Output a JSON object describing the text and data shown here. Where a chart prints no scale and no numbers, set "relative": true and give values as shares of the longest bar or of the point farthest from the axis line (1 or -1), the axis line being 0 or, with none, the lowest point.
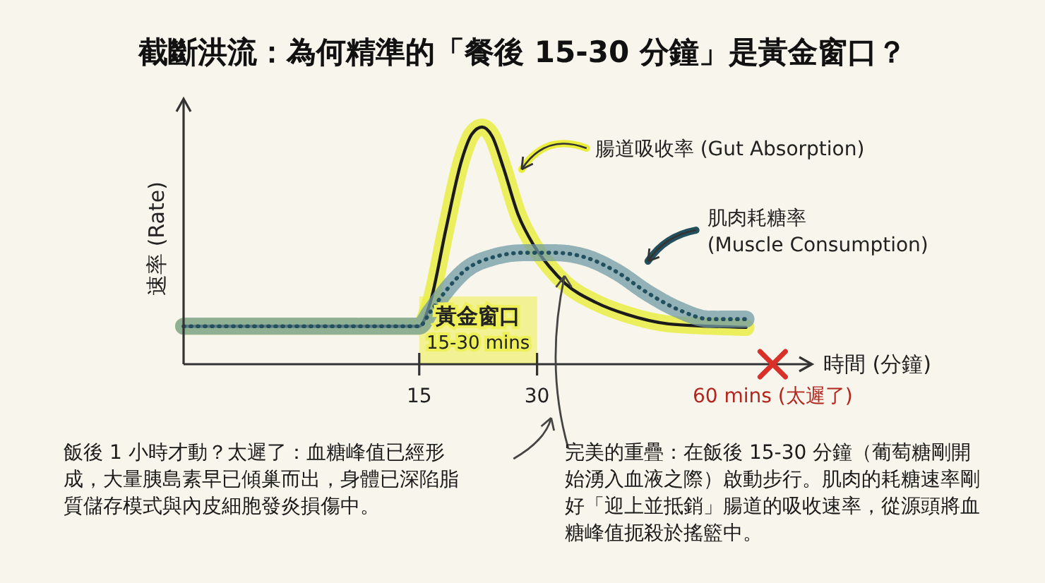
{
  "chart_data": {
    "type": "line",
    "title": "截斷洪流：為何精準的「餐後 15-30 分鐘」是黃金窗口？",
    "xlabel": "時間 (分鐘)",
    "ylabel": "速率 (Rate)",
    "relative": true,
    "legend": "top right",
    "marker": "none",
    "xlim": [
      -15,
      65
    ],
    "xticks": [
      15,
      30,
      {
        "value": 60,
        "label": "60 mins (太遲了)"
      }
    ],
    "series": [
      {
        "name": "腸道吸收率 (Gut Absorption)",
        "color": "#e9ee3a",
        "line_style": "solid",
        "x": [
          -15,
          15,
          16.4,
          18.4,
          20.4,
          21.7,
          23,
          24.3,
          25.7,
          27.6,
          29.6,
          31.6,
          33.6,
          37.5,
          41.4,
          46.7,
          52,
          56.6
        ],
        "values": [
          0.16,
          0.16,
          0.26,
          0.57,
          0.86,
          0.97,
          1,
          0.96,
          0.83,
          0.63,
          0.5,
          0.41,
          0.34,
          0.26,
          0.21,
          0.17,
          0.16,
          0.155
        ]
      },
      {
        "name": "肌肉耗糖率 (Muscle Consumption)",
        "color": "#23505e",
        "line_style": "dotted",
        "x": [
          -15,
          15,
          16.4,
          18.4,
          21,
          24.3,
          28.3,
          32.2,
          36.2,
          40.1,
          44.1,
          48,
          52,
          56.6
        ],
        "values": [
          0.16,
          0.16,
          0.22,
          0.31,
          0.4,
          0.45,
          0.47,
          0.47,
          0.45,
          0.39,
          0.3,
          0.23,
          0.19,
          0.19
        ]
      }
    ],
    "bands": [
      {
        "axis": "x",
        "from": 15,
        "to": 30,
        "label": "黃金窗口\n15-30 mins",
        "color": "#eef05a"
      }
    ],
    "annotations": [
      "飯後 1 小時才動？太遲了：血糖峰值已經形成，大量胰島素早已傾巢而出，身體已深陷脂質儲存模式與內皮細胞發炎損傷中。",
      "完美的重疊：在飯後 15-30 分鐘（葡萄糖剛開始湧入血液之際）啟動步行。肌肉的耗糖速率剛好「迎上並抵銷」腸道的吸收速率，從源頭將血糖峰值扼殺於搖籃中。"
    ]
  }
}
